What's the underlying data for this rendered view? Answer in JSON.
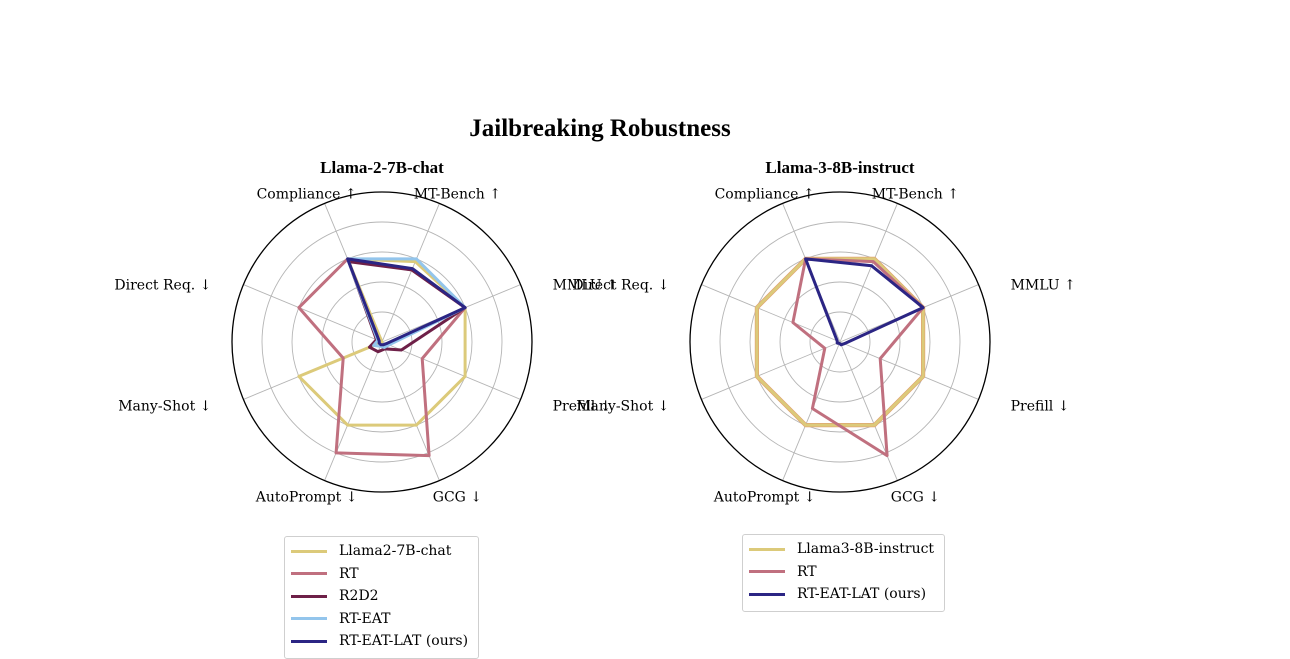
{
  "title": "Jailbreaking Robustness",
  "axes": [
    "MMLU ↑",
    "MT-Bench ↑",
    "Compliance ↑",
    "Direct Req. ↓",
    "Many-Shot ↓",
    "AutoPrompt ↓",
    "GCG ↓",
    "Prefill ↓"
  ],
  "colors": {
    "Llama2-7B-chat": "#dcca7a",
    "Llama3-8B-instruct": "#dcca7a",
    "RT": "#c0707f",
    "R2D2": "#6e2048",
    "RT-EAT": "#93c5ec",
    "RT-EAT-LAT (ours)": "#2b2584",
    "orange_outline": "#e0a070"
  },
  "chart_data": [
    {
      "type": "radar",
      "title": "Llama-2-7B-chat",
      "axes": [
        "MMLU ↑",
        "MT-Bench ↑",
        "Compliance ↑",
        "Direct Req. ↓",
        "Many-Shot ↓",
        "AutoPrompt ↓",
        "GCG ↓",
        "Prefill ↓"
      ],
      "rlim": [
        0,
        1
      ],
      "grid": true,
      "series": [
        {
          "name": "Llama2-7B-chat",
          "values": [
            0.6,
            0.58,
            0.6,
            0.0,
            0.6,
            0.6,
            0.6,
            0.6
          ]
        },
        {
          "name": "RT",
          "values": [
            0.6,
            0.52,
            0.6,
            0.6,
            0.28,
            0.8,
            0.82,
            0.29
          ]
        },
        {
          "name": "R2D2",
          "values": [
            0.6,
            0.52,
            0.58,
            0.04,
            0.09,
            0.07,
            0.05,
            0.14
          ]
        },
        {
          "name": "RT-EAT",
          "values": [
            0.6,
            0.6,
            0.6,
            0.03,
            0.06,
            0.03,
            0.04,
            0.05
          ]
        },
        {
          "name": "RT-EAT-LAT (ours)",
          "values": [
            0.6,
            0.53,
            0.6,
            0.02,
            0.02,
            0.02,
            0.02,
            0.03
          ]
        }
      ],
      "legend": {
        "placement": "below",
        "entries": [
          "Llama2-7B-chat",
          "RT",
          "R2D2",
          "RT-EAT",
          "RT-EAT-LAT (ours)"
        ]
      }
    },
    {
      "type": "radar",
      "title": "Llama-3-8B-instruct",
      "axes": [
        "MMLU ↑",
        "MT-Bench ↑",
        "Compliance ↑",
        "Direct Req. ↓",
        "Many-Shot ↓",
        "AutoPrompt ↓",
        "GCG ↓",
        "Prefill ↓"
      ],
      "rlim": [
        0,
        1
      ],
      "grid": true,
      "series": [
        {
          "name": "Llama3-8B-instruct",
          "values": [
            0.6,
            0.6,
            0.6,
            0.6,
            0.6,
            0.6,
            0.6,
            0.6
          ]
        },
        {
          "name": "RT",
          "values": [
            0.6,
            0.58,
            0.6,
            0.34,
            0.11,
            0.48,
            0.82,
            0.29
          ]
        },
        {
          "name": "RT-EAT-LAT (ours)",
          "values": [
            0.6,
            0.55,
            0.6,
            0.02,
            0.02,
            0.01,
            0.02,
            0.03
          ]
        }
      ],
      "legend": {
        "placement": "below",
        "entries": [
          "Llama3-8B-instruct",
          "RT",
          "RT-EAT-LAT (ours)"
        ]
      }
    }
  ]
}
